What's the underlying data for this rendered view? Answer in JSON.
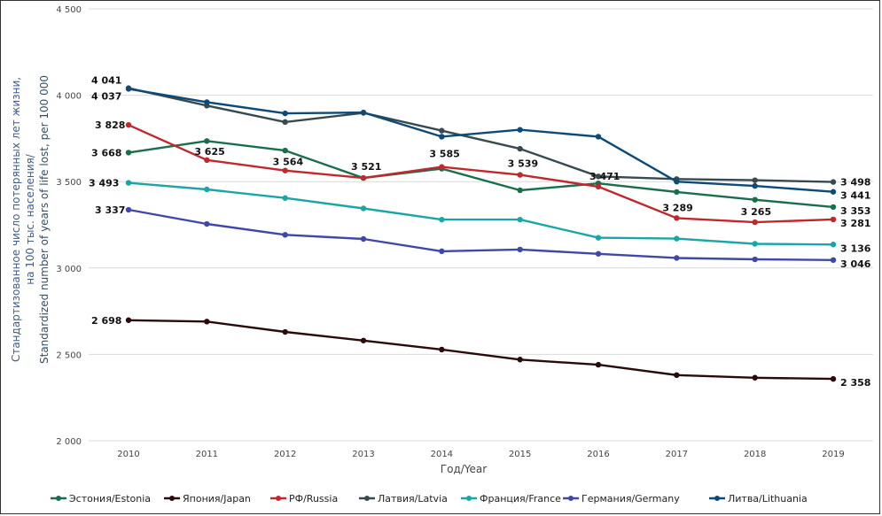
{
  "chart_data": {
    "type": "line",
    "title": "",
    "xlabel": "Год/Year",
    "ylabel_lines": [
      "Стандартизованное число потерянных лет жизни,",
      "на 100 тыс. населения/",
      "Standardized number of years of life lost, per 100 000"
    ],
    "ylim": [
      2000,
      4500
    ],
    "yticks": [
      2000,
      2500,
      3000,
      3500,
      4000,
      4500
    ],
    "ytick_labels": [
      "2 000",
      "2 500",
      "3 000",
      "3 500",
      "4 000",
      "4 500"
    ],
    "categories": [
      "2010",
      "2011",
      "2012",
      "2013",
      "2014",
      "2015",
      "2016",
      "2017",
      "2018",
      "2019"
    ],
    "grid": true,
    "legend_position": "bottom",
    "series": [
      {
        "name": "Эстония/Estonia",
        "color": "#1b6e4b",
        "values": [
          3668,
          3735,
          3680,
          3521,
          3575,
          3450,
          3490,
          3440,
          3395,
          3353
        ]
      },
      {
        "name": "Япония/Japan",
        "color": "#2a0a0a",
        "values": [
          2698,
          2690,
          2630,
          2580,
          2528,
          2470,
          2440,
          2380,
          2365,
          2358
        ]
      },
      {
        "name": "РФ/Russia",
        "color": "#c0282d",
        "values": [
          3828,
          3625,
          3564,
          3521,
          3585,
          3539,
          3471,
          3289,
          3265,
          3281
        ]
      },
      {
        "name": "Латвия/Latvia",
        "color": "#374a4d",
        "values": [
          4041,
          3940,
          3845,
          3898,
          3795,
          3690,
          3530,
          3515,
          3508,
          3498
        ]
      },
      {
        "name": "Франция/France",
        "color": "#1aa6a6",
        "values": [
          3493,
          3455,
          3405,
          3345,
          3280,
          3280,
          3175,
          3170,
          3140,
          3136
        ]
      },
      {
        "name": "Германия/Germany",
        "color": "#3f48a8",
        "values": [
          3337,
          3255,
          3192,
          3168,
          3097,
          3107,
          3082,
          3058,
          3050,
          3046
        ]
      },
      {
        "name": "Литва/Lithuania",
        "color": "#0d4a78",
        "values": [
          4037,
          3960,
          3895,
          3900,
          3760,
          3800,
          3760,
          3500,
          3475,
          3441
        ]
      }
    ],
    "annotations": [
      {
        "text": "4 041",
        "year": "2010",
        "value": 4041
      },
      {
        "text": "4 037",
        "year": "2010",
        "value": 4037
      },
      {
        "text": "3 828",
        "year": "2010",
        "value": 3828
      },
      {
        "text": "3 668",
        "year": "2010",
        "value": 3668
      },
      {
        "text": "3 493",
        "year": "2010",
        "value": 3493
      },
      {
        "text": "3 337",
        "year": "2010",
        "value": 3337
      },
      {
        "text": "2 698",
        "year": "2010",
        "value": 2698
      },
      {
        "text": "3 625",
        "year": "2011",
        "value": 3625
      },
      {
        "text": "3 564",
        "year": "2012",
        "value": 3564
      },
      {
        "text": "3 521",
        "year": "2013",
        "value": 3521
      },
      {
        "text": "3 585",
        "year": "2014",
        "value": 3585
      },
      {
        "text": "3 539",
        "year": "2015",
        "value": 3539
      },
      {
        "text": "3 471",
        "year": "2016",
        "value": 3471
      },
      {
        "text": "3 289",
        "year": "2017",
        "value": 3289
      },
      {
        "text": "3 265",
        "year": "2018",
        "value": 3265
      },
      {
        "text": "3 498",
        "year": "2019",
        "value": 3498
      },
      {
        "text": "3 441",
        "year": "2019",
        "value": 3441
      },
      {
        "text": "3 353",
        "year": "2019",
        "value": 3353
      },
      {
        "text": "3 281",
        "year": "2019",
        "value": 3281
      },
      {
        "text": "3 136",
        "year": "2019",
        "value": 3136
      },
      {
        "text": "3 046",
        "year": "2019",
        "value": 3046
      },
      {
        "text": "2 358",
        "year": "2019",
        "value": 2358
      }
    ]
  }
}
